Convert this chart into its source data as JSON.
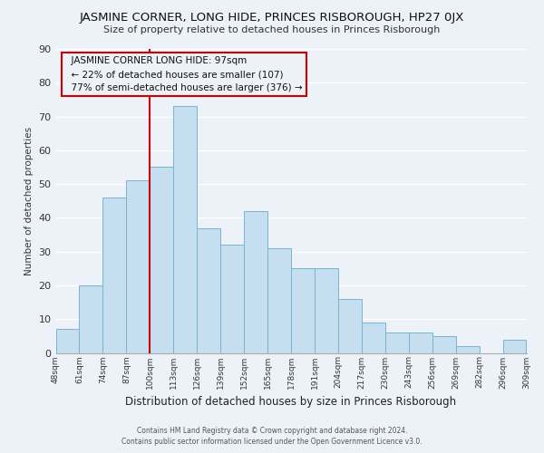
{
  "title": "JASMINE CORNER, LONG HIDE, PRINCES RISBOROUGH, HP27 0JX",
  "subtitle": "Size of property relative to detached houses in Princes Risborough",
  "xlabel": "Distribution of detached houses by size in Princes Risborough",
  "ylabel": "Number of detached properties",
  "categories": [
    "48sqm",
    "61sqm",
    "74sqm",
    "87sqm",
    "100sqm",
    "113sqm",
    "126sqm",
    "139sqm",
    "152sqm",
    "165sqm",
    "178sqm",
    "191sqm",
    "204sqm",
    "217sqm",
    "230sqm",
    "243sqm",
    "256sqm",
    "269sqm",
    "282sqm",
    "296sqm",
    "309sqm"
  ],
  "values": [
    7,
    20,
    46,
    51,
    55,
    73,
    37,
    32,
    42,
    31,
    25,
    25,
    16,
    9,
    6,
    6,
    5,
    2,
    0,
    4
  ],
  "bar_color": "#c5dff0",
  "bar_edgecolor": "#7ab4d0",
  "marker_line_color": "#cc0000",
  "annotation_line1": "JASMINE CORNER LONG HIDE: 97sqm",
  "annotation_line2": "← 22% of detached houses are smaller (107)",
  "annotation_line3": "77% of semi-detached houses are larger (376) →",
  "ylim": [
    0,
    90
  ],
  "yticks": [
    0,
    10,
    20,
    30,
    40,
    50,
    60,
    70,
    80,
    90
  ],
  "footer1": "Contains HM Land Registry data © Crown copyright and database right 2024.",
  "footer2": "Contains public sector information licensed under the Open Government Licence v3.0.",
  "background_color": "#edf2f9",
  "plot_background": "#edf2f9",
  "grid_color": "#ffffff",
  "annotation_box_edgecolor": "#cc0000",
  "annotation_box_facecolor": "#edf2f9"
}
